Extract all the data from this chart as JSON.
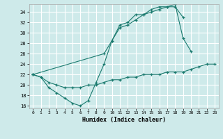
{
  "xlabel": "Humidex (Indice chaleur)",
  "xlim": [
    -0.5,
    23.5
  ],
  "ylim": [
    15.5,
    35.5
  ],
  "xticks": [
    0,
    1,
    2,
    3,
    4,
    5,
    6,
    7,
    8,
    9,
    10,
    11,
    12,
    13,
    14,
    15,
    16,
    17,
    18,
    19,
    20,
    21,
    22,
    23
  ],
  "yticks": [
    16,
    18,
    20,
    22,
    24,
    26,
    28,
    30,
    32,
    34
  ],
  "bg_color": "#ceeaea",
  "line_color": "#1a7a6e",
  "grid_color": "#ffffff",
  "s1x": [
    0,
    1,
    2,
    3,
    4,
    5,
    6,
    7,
    8,
    9,
    10,
    11,
    12,
    13,
    14,
    15,
    16,
    17,
    18,
    19,
    20
  ],
  "s1y": [
    22,
    21.5,
    19.5,
    18.5,
    17.5,
    16.5,
    16.0,
    17.0,
    20.5,
    24.0,
    28.5,
    31.5,
    32.0,
    33.5,
    33.5,
    34.5,
    35.0,
    35.0,
    35.5,
    29.0,
    26.5
  ],
  "s2x": [
    0,
    9,
    10,
    11,
    12,
    13,
    14,
    15,
    16,
    17,
    18,
    19
  ],
  "s2y": [
    22,
    26.0,
    28.5,
    31.0,
    31.5,
    32.5,
    33.5,
    34.0,
    34.5,
    35.0,
    35.0,
    33.0
  ],
  "s3x": [
    0,
    1,
    2,
    3,
    4,
    5,
    6,
    7,
    8,
    9,
    10,
    11,
    12,
    13,
    14,
    15,
    16,
    17,
    18,
    19,
    20,
    21,
    22,
    23
  ],
  "s3y": [
    22,
    21.5,
    20.5,
    20.0,
    19.5,
    19.5,
    19.5,
    20.0,
    20.0,
    20.5,
    21.0,
    21.0,
    21.5,
    21.5,
    22.0,
    22.0,
    22.0,
    22.5,
    22.5,
    22.5,
    23.0,
    23.5,
    24.0,
    24.0
  ]
}
